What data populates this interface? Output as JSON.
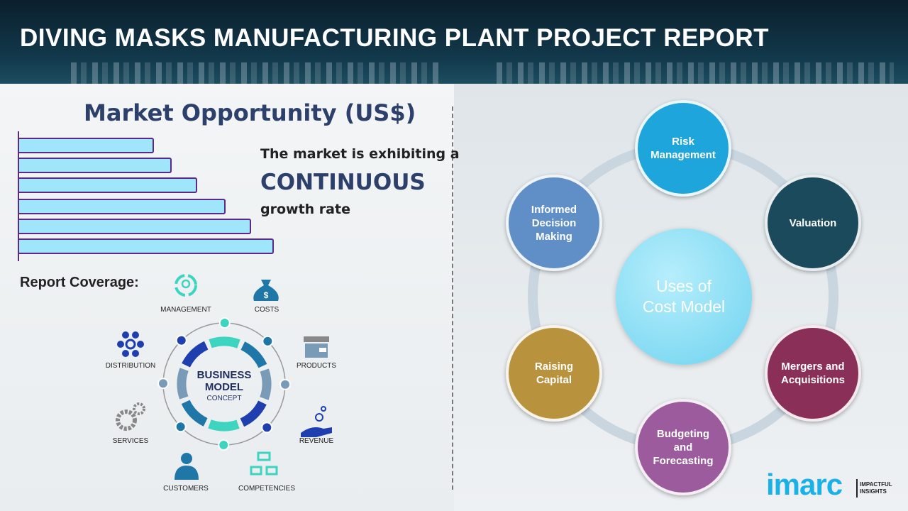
{
  "header": {
    "title": "DIVING MASKS MANUFACTURING PLANT PROJECT REPORT"
  },
  "market": {
    "title": "Market Opportunity (US$)",
    "line1": "The market is exhibiting a",
    "line2": "CONTINUOUS",
    "line3": "growth rate",
    "bar_relative_lengths": [
      0.53,
      0.6,
      0.7,
      0.81,
      0.91,
      1.0
    ],
    "colors": {
      "bar_fill": "#a0e6fb",
      "bar_border": "#5b2a86"
    }
  },
  "coverage": {
    "title": "Report Coverage:",
    "center_line1": "BUSINESS",
    "center_line2": "MODEL",
    "center_line3": "CONCEPT",
    "items": [
      {
        "label": "MANAGEMENT",
        "icon": "lightbulb-cycle-icon"
      },
      {
        "label": "COSTS",
        "icon": "money-bag-icon"
      },
      {
        "label": "PRODUCTS",
        "icon": "box-icon"
      },
      {
        "label": "REVENUE",
        "icon": "hand-coins-icon"
      },
      {
        "label": "COMPETENCIES",
        "icon": "org-chart-icon"
      },
      {
        "label": "CUSTOMERS",
        "icon": "person-icon"
      },
      {
        "label": "SERVICES",
        "icon": "gears-icon"
      },
      {
        "label": "DISTRIBUTION",
        "icon": "network-icon"
      }
    ]
  },
  "uses": {
    "center": "Uses of\nCost Model",
    "nodes": [
      {
        "label": "Risk\nManagement",
        "color": "#1ea5dc"
      },
      {
        "label": "Valuation",
        "color": "#1b4a5c"
      },
      {
        "label": "Mergers and\nAcquisitions",
        "color": "#8a2f58"
      },
      {
        "label": "Budgeting\nand\nForecasting",
        "color": "#9b5b9c"
      },
      {
        "label": "Raising\nCapital",
        "color": "#b8923c"
      },
      {
        "label": "Informed\nDecision\nMaking",
        "color": "#5f8fc6"
      }
    ]
  },
  "logo": {
    "text": "imarc",
    "tagline": "IMPACTFUL\nINSIGHTS"
  }
}
